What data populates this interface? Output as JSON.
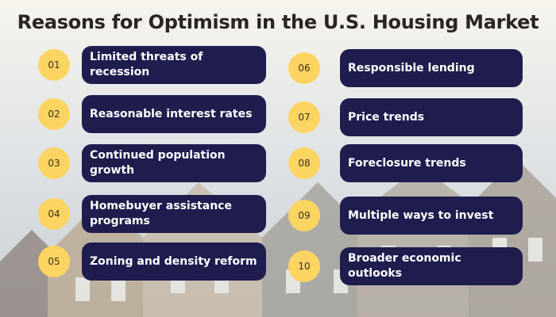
{
  "title": "Reasons for Optimism in the U.S. Housing Market",
  "items": [
    {
      "number": "01",
      "text": "Limited threats of recession"
    },
    {
      "number": "02",
      "text": "Reasonable interest rates"
    },
    {
      "number": "03",
      "text": "Continued population growth"
    },
    {
      "number": "04",
      "text": "Homebuyer assistance programs"
    },
    {
      "number": "05",
      "text": "Zoning and density reform"
    },
    {
      "number": "06",
      "text": "Responsible lending"
    },
    {
      "number": "07",
      "text": "Price trends"
    },
    {
      "number": "08",
      "text": "Foreclosure trends"
    },
    {
      "number": "09",
      "text": "Multiple ways to invest"
    },
    {
      "number": "10",
      "text": "Broader economic outlooks"
    }
  ]
}
